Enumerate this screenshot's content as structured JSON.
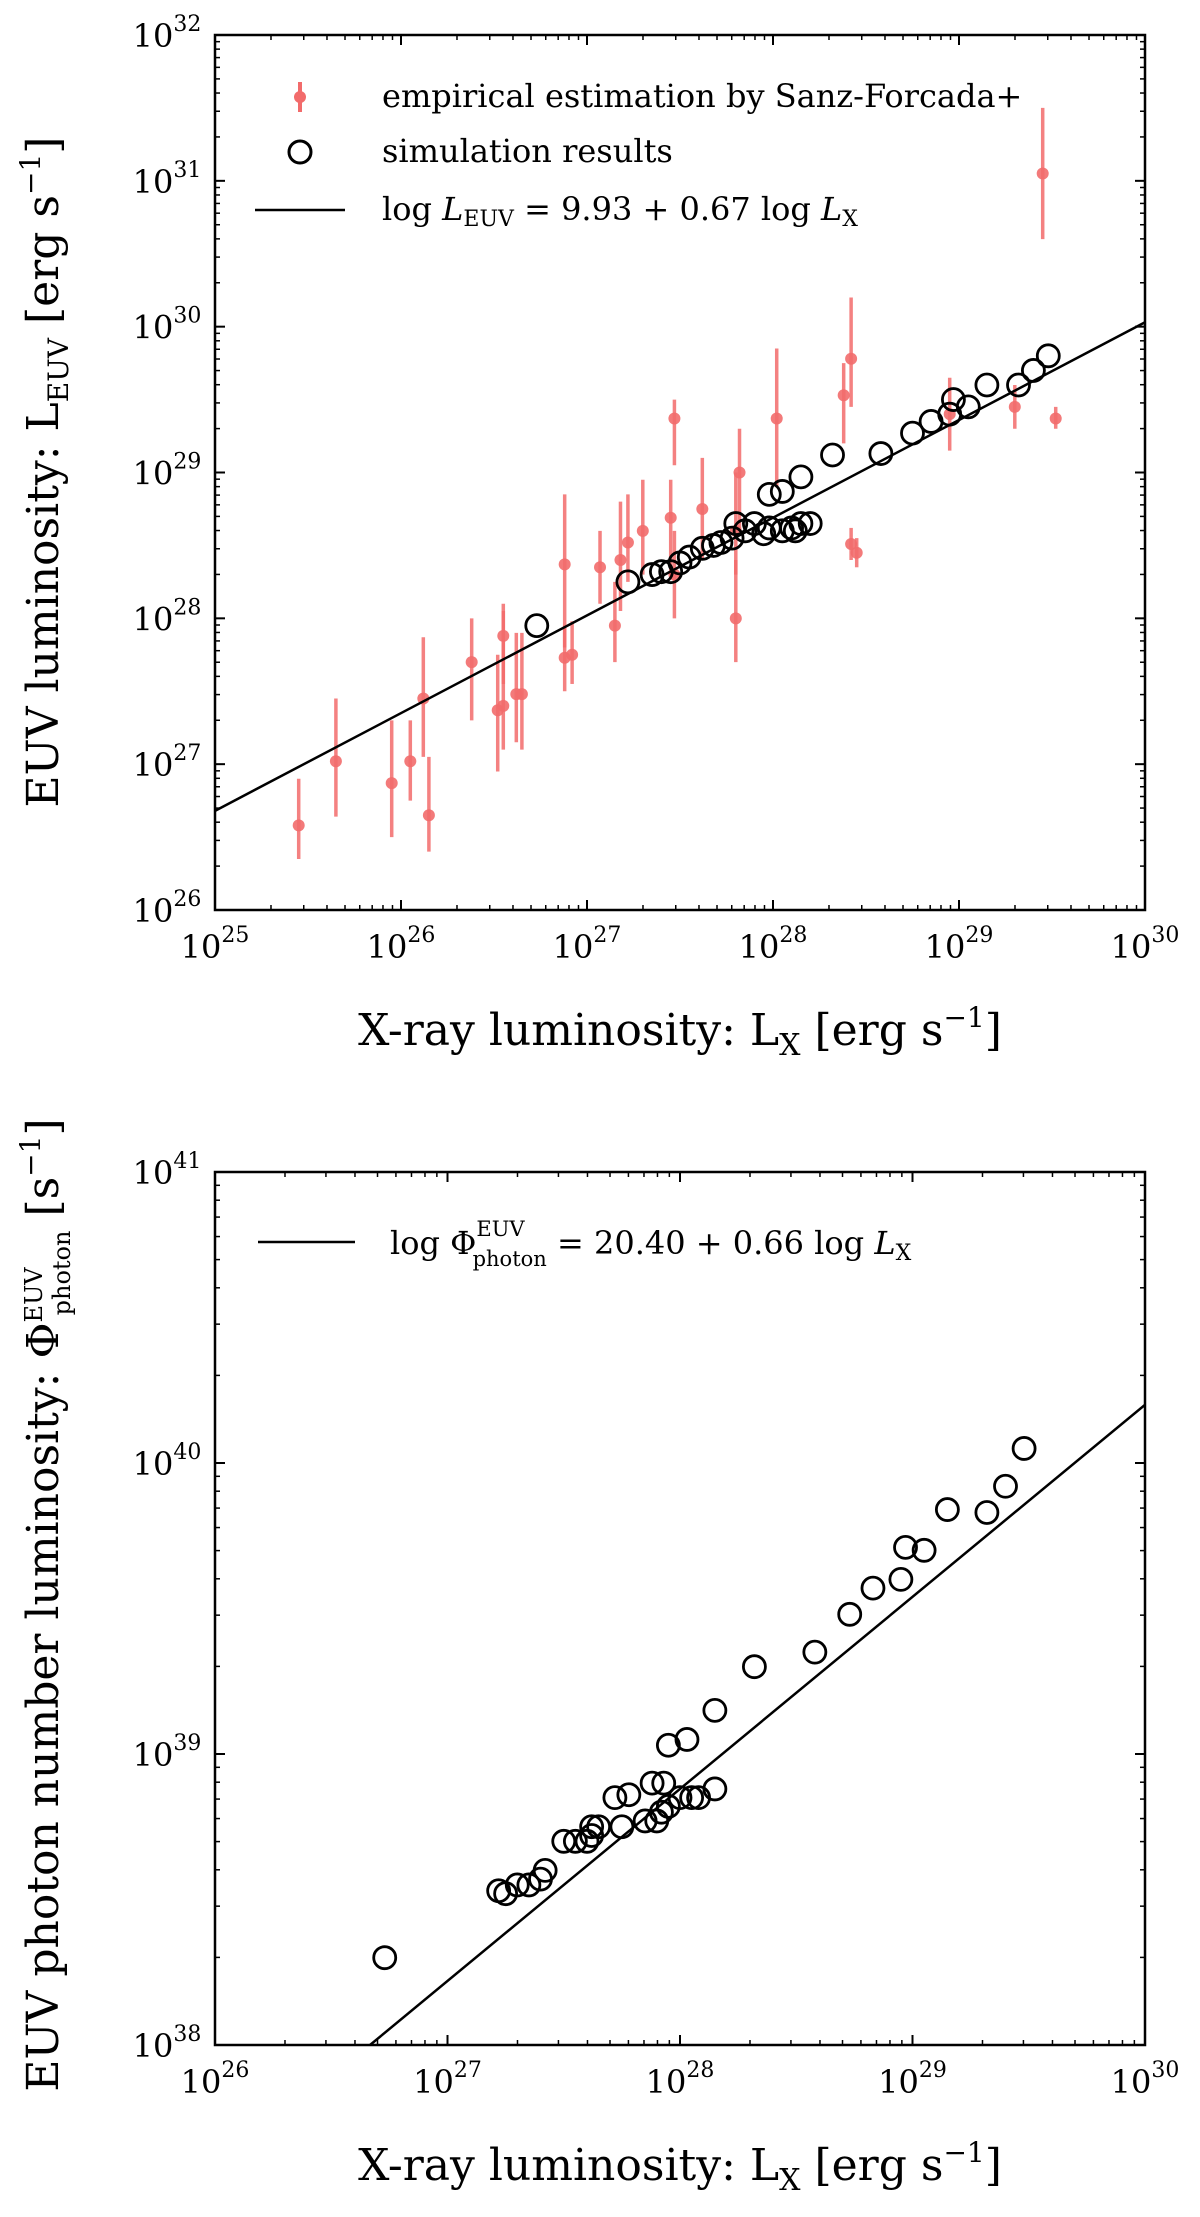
{
  "figure_description_axes_units": "log-scale luminosity in erg s^-1",
  "chart_data": [
    {
      "type": "scatter",
      "xscale": "log",
      "yscale": "log",
      "xlim": [
        1e+25,
        1e+30
      ],
      "ylim": [
        1e+26,
        1e+32
      ],
      "xlabel": "X-ray luminosity:  L",
      "xlabel_sub": "X",
      "xlabel_units": " [erg s",
      "xlabel_sup": "−1",
      "xlabel_close": "]",
      "ylabel": "EUV luminosity:  L",
      "ylabel_sub": "EUV",
      "ylabel_units": " [erg s",
      "ylabel_sup": "−1",
      "ylabel_close": "]",
      "x_ticks": [
        25,
        26,
        27,
        28,
        29,
        30
      ],
      "y_ticks": [
        26,
        27,
        28,
        29,
        30,
        31,
        32
      ],
      "legend_position": "top-left",
      "legend": {
        "empirical": "empirical estimation by Sanz-Forcada+",
        "simulation": "simulation results",
        "fit_prefix": "log ",
        "fit_var": "L",
        "fit_sub": "EUV",
        "fit_eq": " = 9.93 + 0.67 log ",
        "fit_var2": "L",
        "fit_sub2": "X"
      },
      "fit": {
        "intercept": 9.93,
        "slope": 0.67
      },
      "colors": {
        "empirical": "#f26b6b",
        "simulation": "#000000",
        "fit": "#000000"
      },
      "empirical": [
        {
          "logx": 25.45,
          "logy": 26.58,
          "lo": 26.35,
          "hi": 26.9
        },
        {
          "logx": 25.65,
          "logy": 27.02,
          "lo": 26.64,
          "hi": 27.45
        },
        {
          "logx": 25.95,
          "logy": 26.87,
          "lo": 26.5,
          "hi": 27.3
        },
        {
          "logx": 26.05,
          "logy": 27.02,
          "lo": 26.75,
          "hi": 27.3
        },
        {
          "logx": 26.12,
          "logy": 27.45,
          "lo": 27.05,
          "hi": 27.87
        },
        {
          "logx": 26.15,
          "logy": 26.65,
          "lo": 26.4,
          "hi": 27.05
        },
        {
          "logx": 26.38,
          "logy": 27.7,
          "lo": 27.3,
          "hi": 28.0
        },
        {
          "logx": 26.52,
          "logy": 27.37,
          "lo": 26.95,
          "hi": 27.75
        },
        {
          "logx": 26.55,
          "logy": 27.4,
          "lo": 27.1,
          "hi": 28.1
        },
        {
          "logx": 26.55,
          "logy": 27.88,
          "lo": 27.55,
          "hi": 28.05
        },
        {
          "logx": 26.62,
          "logy": 27.48,
          "lo": 27.15,
          "hi": 27.9
        },
        {
          "logx": 26.65,
          "logy": 27.48,
          "lo": 27.1,
          "hi": 27.9
        },
        {
          "logx": 26.88,
          "logy": 28.37,
          "lo": 27.8,
          "hi": 28.85
        },
        {
          "logx": 26.88,
          "logy": 27.73,
          "lo": 27.5,
          "hi": 27.95
        },
        {
          "logx": 26.92,
          "logy": 27.75,
          "lo": 27.55,
          "hi": 27.98
        },
        {
          "logx": 27.07,
          "logy": 28.35,
          "lo": 28.1,
          "hi": 28.6
        },
        {
          "logx": 27.15,
          "logy": 27.95,
          "lo": 27.7,
          "hi": 28.25
        },
        {
          "logx": 27.18,
          "logy": 28.4,
          "lo": 28.05,
          "hi": 28.8
        },
        {
          "logx": 27.22,
          "logy": 28.52,
          "lo": 28.25,
          "hi": 28.85
        },
        {
          "logx": 27.3,
          "logy": 28.6,
          "lo": 28.3,
          "hi": 28.95
        },
        {
          "logx": 27.45,
          "logy": 28.69,
          "lo": 28.3,
          "hi": 28.95
        },
        {
          "logx": 27.47,
          "logy": 29.37,
          "lo": 29.05,
          "hi": 29.5
        },
        {
          "logx": 27.47,
          "logy": 28.3,
          "lo": 28.0,
          "hi": 28.6
        },
        {
          "logx": 27.62,
          "logy": 28.75,
          "lo": 28.4,
          "hi": 29.1
        },
        {
          "logx": 27.8,
          "logy": 28.6,
          "lo": 28.3,
          "hi": 29.0
        },
        {
          "logx": 27.8,
          "logy": 28.0,
          "lo": 27.7,
          "hi": 28.4
        },
        {
          "logx": 27.82,
          "logy": 29.0,
          "lo": 28.6,
          "hi": 29.3
        },
        {
          "logx": 28.02,
          "logy": 29.37,
          "lo": 28.9,
          "hi": 29.85
        },
        {
          "logx": 28.38,
          "logy": 29.53,
          "lo": 29.2,
          "hi": 29.75
        },
        {
          "logx": 28.42,
          "logy": 29.78,
          "lo": 29.45,
          "hi": 30.2
        },
        {
          "logx": 28.42,
          "logy": 28.51,
          "lo": 28.4,
          "hi": 28.62
        },
        {
          "logx": 28.45,
          "logy": 28.45,
          "lo": 28.35,
          "hi": 28.55
        },
        {
          "logx": 28.95,
          "logy": 29.4,
          "lo": 29.15,
          "hi": 29.65
        },
        {
          "logx": 29.3,
          "logy": 29.45,
          "lo": 29.3,
          "hi": 29.6
        },
        {
          "logx": 29.45,
          "logy": 31.05,
          "lo": 30.6,
          "hi": 31.5
        },
        {
          "logx": 29.52,
          "logy": 29.37,
          "lo": 29.3,
          "hi": 29.45
        }
      ],
      "simulation": [
        {
          "logx": 26.73,
          "logy": 27.95
        },
        {
          "logx": 27.22,
          "logy": 28.25
        },
        {
          "logx": 27.35,
          "logy": 28.3
        },
        {
          "logx": 27.4,
          "logy": 28.32
        },
        {
          "logx": 27.45,
          "logy": 28.32
        },
        {
          "logx": 27.5,
          "logy": 28.38
        },
        {
          "logx": 27.55,
          "logy": 28.42
        },
        {
          "logx": 27.62,
          "logy": 28.48
        },
        {
          "logx": 27.68,
          "logy": 28.5
        },
        {
          "logx": 27.72,
          "logy": 28.52
        },
        {
          "logx": 27.78,
          "logy": 28.55
        },
        {
          "logx": 27.85,
          "logy": 28.6
        },
        {
          "logx": 27.8,
          "logy": 28.65
        },
        {
          "logx": 27.9,
          "logy": 28.65
        },
        {
          "logx": 27.95,
          "logy": 28.58
        },
        {
          "logx": 27.98,
          "logy": 28.62
        },
        {
          "logx": 28.05,
          "logy": 28.6
        },
        {
          "logx": 28.1,
          "logy": 28.62
        },
        {
          "logx": 28.12,
          "logy": 28.6
        },
        {
          "logx": 28.15,
          "logy": 28.65
        },
        {
          "logx": 28.2,
          "logy": 28.65
        },
        {
          "logx": 27.98,
          "logy": 28.85
        },
        {
          "logx": 28.05,
          "logy": 28.87
        },
        {
          "logx": 28.15,
          "logy": 28.97
        },
        {
          "logx": 28.32,
          "logy": 29.12
        },
        {
          "logx": 28.58,
          "logy": 29.13
        },
        {
          "logx": 28.75,
          "logy": 29.27
        },
        {
          "logx": 28.85,
          "logy": 29.35
        },
        {
          "logx": 28.95,
          "logy": 29.4
        },
        {
          "logx": 28.97,
          "logy": 29.5
        },
        {
          "logx": 29.05,
          "logy": 29.45
        },
        {
          "logx": 29.15,
          "logy": 29.6
        },
        {
          "logx": 29.32,
          "logy": 29.6
        },
        {
          "logx": 29.4,
          "logy": 29.7
        },
        {
          "logx": 29.48,
          "logy": 29.8
        }
      ]
    },
    {
      "type": "scatter",
      "xscale": "log",
      "yscale": "log",
      "xlim": [
        1e+26,
        1e+30
      ],
      "ylim": [
        1e+38,
        1e+41
      ],
      "xlabel": "X-ray luminosity:  L",
      "xlabel_sub": "X",
      "xlabel_units": " [erg s",
      "xlabel_sup": "−1",
      "xlabel_close": "]",
      "ylabel": "EUV photon number luminosity:  Φ",
      "ylabel_sub": "photon",
      "ylabel_sup_top": "EUV",
      "ylabel_units": "  [s",
      "ylabel_sup": "−1",
      "ylabel_close": "]",
      "x_ticks": [
        26,
        27,
        28,
        29,
        30
      ],
      "y_ticks": [
        38,
        39,
        40,
        41
      ],
      "legend_position": "top-left",
      "legend": {
        "fit_prefix": "log Φ",
        "fit_sup": "EUV",
        "fit_sub": "photon",
        "fit_eq": " = 20.40 + 0.66 log ",
        "fit_var2": "L",
        "fit_sub2": "X"
      },
      "fit": {
        "intercept": 20.4,
        "slope": 0.66
      },
      "colors": {
        "simulation": "#000000",
        "fit": "#000000"
      },
      "simulation": [
        {
          "logx": 26.73,
          "logy": 38.3
        },
        {
          "logx": 27.22,
          "logy": 38.53
        },
        {
          "logx": 27.25,
          "logy": 38.52
        },
        {
          "logx": 27.3,
          "logy": 38.55
        },
        {
          "logx": 27.35,
          "logy": 38.55
        },
        {
          "logx": 27.4,
          "logy": 38.57
        },
        {
          "logx": 27.42,
          "logy": 38.6
        },
        {
          "logx": 27.5,
          "logy": 38.7
        },
        {
          "logx": 27.55,
          "logy": 38.7
        },
        {
          "logx": 27.6,
          "logy": 38.7
        },
        {
          "logx": 27.62,
          "logy": 38.72
        },
        {
          "logx": 27.65,
          "logy": 38.75
        },
        {
          "logx": 27.62,
          "logy": 38.75
        },
        {
          "logx": 27.72,
          "logy": 38.85
        },
        {
          "logx": 27.75,
          "logy": 38.75
        },
        {
          "logx": 27.78,
          "logy": 38.86
        },
        {
          "logx": 27.85,
          "logy": 38.77
        },
        {
          "logx": 27.88,
          "logy": 38.9
        },
        {
          "logx": 27.9,
          "logy": 38.77
        },
        {
          "logx": 27.92,
          "logy": 38.8
        },
        {
          "logx": 27.95,
          "logy": 38.82
        },
        {
          "logx": 27.93,
          "logy": 38.9
        },
        {
          "logx": 28.0,
          "logy": 38.85
        },
        {
          "logx": 28.05,
          "logy": 38.85
        },
        {
          "logx": 28.08,
          "logy": 38.85
        },
        {
          "logx": 27.95,
          "logy": 39.03
        },
        {
          "logx": 28.03,
          "logy": 39.05
        },
        {
          "logx": 28.15,
          "logy": 38.88
        },
        {
          "logx": 28.15,
          "logy": 39.15
        },
        {
          "logx": 28.32,
          "logy": 39.3
        },
        {
          "logx": 28.58,
          "logy": 39.35
        },
        {
          "logx": 28.73,
          "logy": 39.48
        },
        {
          "logx": 28.83,
          "logy": 39.57
        },
        {
          "logx": 28.95,
          "logy": 39.6
        },
        {
          "logx": 28.97,
          "logy": 39.71
        },
        {
          "logx": 29.05,
          "logy": 39.7
        },
        {
          "logx": 29.15,
          "logy": 39.84
        },
        {
          "logx": 29.32,
          "logy": 39.83
        },
        {
          "logx": 29.4,
          "logy": 39.92
        },
        {
          "logx": 29.48,
          "logy": 40.05
        }
      ]
    }
  ]
}
